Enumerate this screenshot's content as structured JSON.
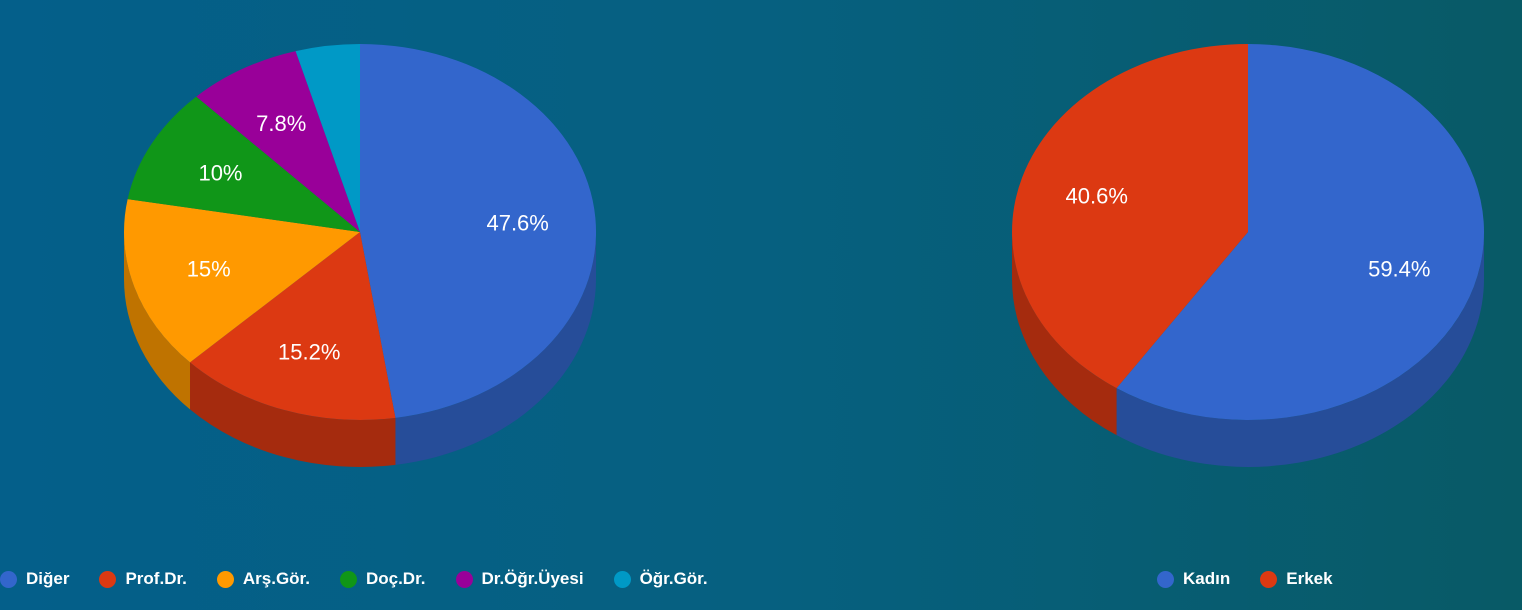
{
  "chart_data": [
    {
      "type": "pie",
      "style": "3d",
      "categories": [
        "Diğer",
        "Prof.Dr.",
        "Arş.Gör.",
        "Doç.Dr.",
        "Dr.Öğr.Üyesi",
        "Öğr.Gör."
      ],
      "values": [
        47.6,
        15.2,
        15.0,
        10.0,
        7.8,
        4.4
      ],
      "labels": [
        "47.6%",
        "15.2%",
        "15%",
        "10%",
        "7.8%",
        ""
      ],
      "colors": [
        "#3366cc",
        "#dc3912",
        "#ff9900",
        "#109618",
        "#990099",
        "#0099c6"
      ],
      "side_colors": [
        "#264d99",
        "#a52b0e",
        "#bf7300",
        "#0c7112",
        "#730073",
        "#007394"
      ],
      "legend_position": "bottom"
    },
    {
      "type": "pie",
      "style": "3d",
      "categories": [
        "Kadın",
        "Erkek"
      ],
      "values": [
        59.4,
        40.6
      ],
      "labels": [
        "59.4%",
        "40.6%"
      ],
      "colors": [
        "#3366cc",
        "#dc3912"
      ],
      "side_colors": [
        "#264d99",
        "#a52b0e"
      ],
      "legend_position": "bottom"
    }
  ]
}
